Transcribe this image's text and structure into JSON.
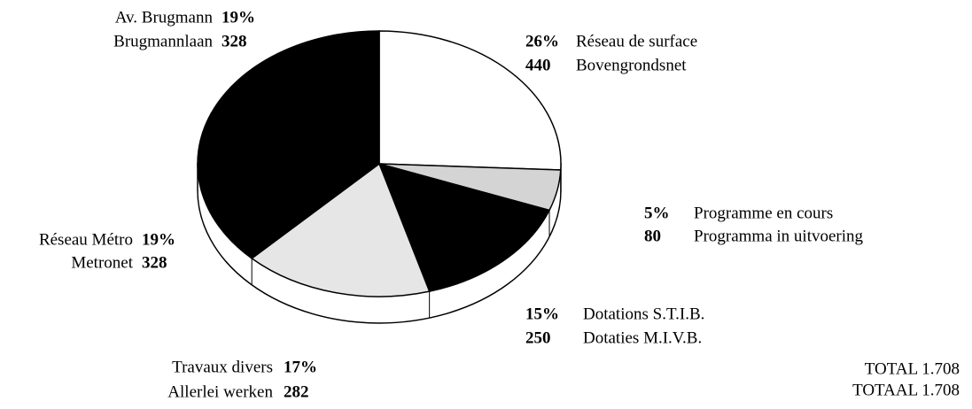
{
  "chart_data": {
    "type": "pie",
    "categories": [
      "Réseau de surface",
      "Programme en cours",
      "Dotations S.T.I.B.",
      "Travaux divers",
      "Réseau Métro",
      "Av. Brugmann"
    ],
    "categories_nl": [
      "Bovengrondsnet",
      "Programma in uitvoering",
      "Dotaties M.I.V.B.",
      "Allerlei werken",
      "Metronet",
      "Brugmannlaan"
    ],
    "values": [
      26,
      5,
      15,
      17,
      19,
      19
    ],
    "value_labels": [
      "26%",
      "5%",
      "15%",
      "17%",
      "19%",
      "19%"
    ],
    "amounts": [
      440,
      80,
      250,
      282,
      328,
      328
    ],
    "colors": [
      "#ffffff",
      "#d4d4d4",
      "#000000",
      "#e6e6e6",
      "#000000",
      "#000000"
    ],
    "annotations": [
      "TOTAL 1.708",
      "TOTAAL 1.708"
    ]
  }
}
